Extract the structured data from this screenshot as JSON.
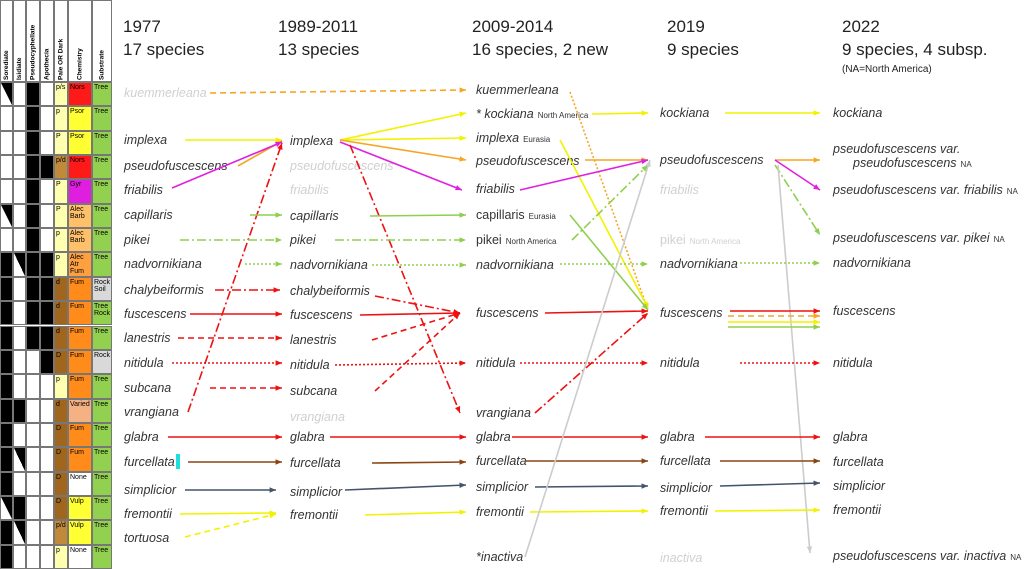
{
  "table": {
    "headers": [
      "Sorediate",
      "Isidiate",
      "Pseudocyphellate",
      "Apothecia",
      "Pale OR Dark",
      "Chemistry",
      "Substrate"
    ],
    "rows": [
      {
        "pale": "p/s",
        "pale_color": "#ffffb0",
        "chem": "Nors",
        "chem_color": "#ff1a1a",
        "substrate": "Tree",
        "substrate_color": "#92d050"
      },
      {
        "pale": "p",
        "pale_color": "#ffffb0",
        "chem": "Psor",
        "chem_color": "#ffff33",
        "substrate": "Tree",
        "substrate_color": "#92d050"
      },
      {
        "pale": "P",
        "pale_color": "#ffffb0",
        "chem": "Psor",
        "chem_color": "#ffff33",
        "substrate": "Tree",
        "substrate_color": "#92d050"
      },
      {
        "pale": "p/d",
        "pale_color": "#c08a3a",
        "chem": "Nors",
        "chem_color": "#ff1a1a",
        "substrate": "Tree",
        "substrate_color": "#92d050"
      },
      {
        "pale": "P",
        "pale_color": "#ffffb0",
        "chem": "Gyr",
        "chem_color": "#e01ee0",
        "substrate": "Tree",
        "substrate_color": "#92d050"
      },
      {
        "pale": "P",
        "pale_color": "#ffffb0",
        "chem": "Alec Barb",
        "chem_color": "#ffc06a",
        "substrate": "Tree",
        "substrate_color": "#92d050"
      },
      {
        "pale": "p",
        "pale_color": "#ffffb0",
        "chem": "Alec Barb",
        "chem_color": "#ffc06a",
        "substrate": "Tree",
        "substrate_color": "#92d050"
      },
      {
        "pale": "p",
        "pale_color": "#ffffb0",
        "chem": "Alec Atr Fum",
        "chem_color": "#ffa040",
        "substrate": "Tree",
        "substrate_color": "#92d050"
      },
      {
        "pale": "d",
        "pale_color": "#a0661e",
        "chem": "Fum",
        "chem_color": "#ff8c1a",
        "substrate": "Rock Soil",
        "substrate_color": "#d9d9d9"
      },
      {
        "pale": "d",
        "pale_color": "#a0661e",
        "chem": "Fum",
        "chem_color": "#ff8c1a",
        "substrate": "Tree Rock",
        "substrate_color": "#92d050"
      },
      {
        "pale": "d",
        "pale_color": "#a0661e",
        "chem": "Fum",
        "chem_color": "#ff8c1a",
        "substrate": "Tree",
        "substrate_color": "#92d050"
      },
      {
        "pale": "D",
        "pale_color": "#a0661e",
        "chem": "Fum",
        "chem_color": "#ff8c1a",
        "substrate": "Rock",
        "substrate_color": "#d9d9d9"
      },
      {
        "pale": "p",
        "pale_color": "#ffffb0",
        "chem": "Fum",
        "chem_color": "#ff8c1a",
        "substrate": "Tree",
        "substrate_color": "#92d050"
      },
      {
        "pale": "d",
        "pale_color": "#a0661e",
        "chem": "Varied",
        "chem_color": "#f4b183",
        "substrate": "Tree",
        "substrate_color": "#92d050"
      },
      {
        "pale": "D",
        "pale_color": "#a0661e",
        "chem": "Fum",
        "chem_color": "#ff8c1a",
        "substrate": "Tree",
        "substrate_color": "#92d050"
      },
      {
        "pale": "D",
        "pale_color": "#a0661e",
        "chem": "Fum",
        "chem_color": "#ff8c1a",
        "substrate": "Tree",
        "substrate_color": "#92d050"
      },
      {
        "pale": "D",
        "pale_color": "#a0661e",
        "chem": "None",
        "chem_color": "#ffffff",
        "substrate": "Tree",
        "substrate_color": "#92d050"
      },
      {
        "pale": "D",
        "pale_color": "#a0661e",
        "chem": "Vulp",
        "chem_color": "#ffff33",
        "substrate": "Tree",
        "substrate_color": "#92d050"
      },
      {
        "pale": "p/d",
        "pale_color": "#c08a3a",
        "chem": "Vulp",
        "chem_color": "#ffff33",
        "substrate": "Tree",
        "substrate_color": "#92d050"
      },
      {
        "pale": "p",
        "pale_color": "#ffffb0",
        "chem": "None",
        "chem_color": "#ffffff",
        "substrate": "Tree",
        "substrate_color": "#92d050"
      }
    ]
  },
  "columns": [
    {
      "year": "1977",
      "count": "17 species",
      "species": [
        {
          "name": "kuemmerleana",
          "faded": true
        },
        {
          "name": "implexa"
        },
        {
          "name": "pseudofuscescens"
        },
        {
          "name": "friabilis"
        },
        {
          "name": "capillaris"
        },
        {
          "name": "pikei"
        },
        {
          "name": "nadvornikiana"
        },
        {
          "name": "chalybeiformis"
        },
        {
          "name": "fuscescens"
        },
        {
          "name": "lanestris"
        },
        {
          "name": "nitidula"
        },
        {
          "name": "subcana"
        },
        {
          "name": "vrangiana"
        },
        {
          "name": "glabra"
        },
        {
          "name": "furcellata"
        },
        {
          "name": "simplicior"
        },
        {
          "name": "fremontii"
        },
        {
          "name": "tortuosa"
        }
      ]
    },
    {
      "year": "1989-2011",
      "count": "13 species",
      "species": [
        {
          "name": "implexa"
        },
        {
          "name": "pseudofuscescens",
          "faded": true
        },
        {
          "name": "friabilis",
          "faded": true
        },
        {
          "name": "capillaris"
        },
        {
          "name": "pikei"
        },
        {
          "name": "nadvornikiana"
        },
        {
          "name": "chalybeiformis"
        },
        {
          "name": "fuscescens"
        },
        {
          "name": "lanestris"
        },
        {
          "name": "nitidula"
        },
        {
          "name": "subcana"
        },
        {
          "name": "vrangiana",
          "faded": true
        },
        {
          "name": "glabra"
        },
        {
          "name": "furcellata"
        },
        {
          "name": "simplicior"
        },
        {
          "name": "fremontii"
        }
      ]
    },
    {
      "year": "2009-2014",
      "count": "16 species, 2 new",
      "species": [
        {
          "name": "kuemmerleana"
        },
        {
          "name": "* kockiana",
          "note": "North America"
        },
        {
          "name": "implexa",
          "note": "Eurasia"
        },
        {
          "name": "pseudofuscescens"
        },
        {
          "name": "friabilis"
        },
        {
          "name": "capillaris",
          "note": "Eurasia",
          "upright": true
        },
        {
          "name": "pikei",
          "note": "North America",
          "upright": true
        },
        {
          "name": "nadvornikiana"
        },
        {
          "name": "fuscescens"
        },
        {
          "name": "nitidula"
        },
        {
          "name": "vrangiana"
        },
        {
          "name": "glabra"
        },
        {
          "name": "furcellata"
        },
        {
          "name": "simplicior"
        },
        {
          "name": "fremontii"
        },
        {
          "name": "*inactiva"
        }
      ]
    },
    {
      "year": "2019",
      "count": "9 species",
      "species": [
        {
          "name": "kockiana"
        },
        {
          "name": "pseudofuscescens"
        },
        {
          "name": "friabilis",
          "faded": true
        },
        {
          "name": "pikei",
          "note": "North America",
          "faded": true,
          "upright": true
        },
        {
          "name": "nadvornikiana"
        },
        {
          "name": "fuscescens"
        },
        {
          "name": "nitidula"
        },
        {
          "name": "glabra"
        },
        {
          "name": "furcellata"
        },
        {
          "name": "simplicior"
        },
        {
          "name": "fremontii"
        },
        {
          "name": "inactiva",
          "faded": true
        }
      ]
    },
    {
      "year": "2022",
      "count": "9 species, 4 subsp.",
      "note": "(NA=North America)",
      "species": [
        {
          "name": "kockiana"
        },
        {
          "name": "pseudofuscescens var.",
          "name2": "pseudofuscescens",
          "note": "NA"
        },
        {
          "name": "pseudofuscescens var. friabilis",
          "note": "NA"
        },
        {
          "name": "pseudofuscescens var. pikei",
          "note": "NA"
        },
        {
          "name": "nadvornikiana"
        },
        {
          "name": "fuscescens"
        },
        {
          "name": "nitidula"
        },
        {
          "name": "glabra"
        },
        {
          "name": "furcellata"
        },
        {
          "name": "simplicior"
        },
        {
          "name": "fremontii"
        },
        {
          "name": "pseudofuscescens var. inactiva",
          "note": "NA"
        }
      ]
    }
  ]
}
